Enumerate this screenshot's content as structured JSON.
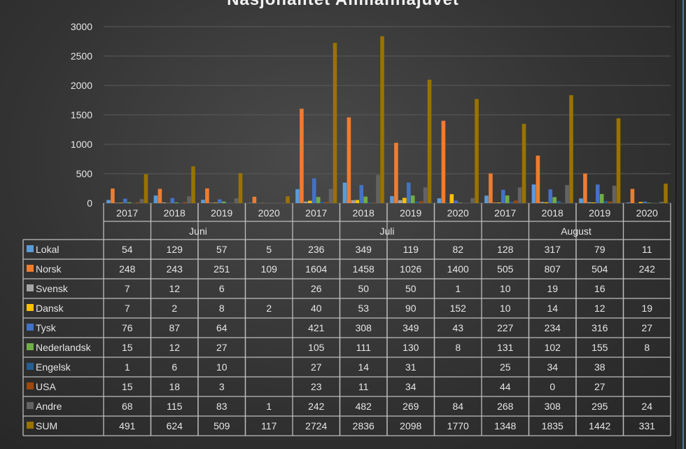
{
  "chart_data": {
    "type": "bar",
    "title": "Nasjonalitet Allmannajuvet",
    "ylim": [
      0,
      3000
    ],
    "yticks": [
      0,
      500,
      1000,
      1500,
      2000,
      2500,
      3000
    ],
    "grid": true,
    "legend": "data-table",
    "months": [
      "Juni",
      "Juli",
      "August"
    ],
    "years": [
      "2017",
      "2018",
      "2019",
      "2020"
    ],
    "categories": [
      "Juni 2017",
      "Juni 2018",
      "Juni 2019",
      "Juni 2020",
      "Juli 2017",
      "Juli 2018",
      "Juli 2019",
      "Juli 2020",
      "August 2017",
      "August 2018",
      "August 2019",
      "August 2020"
    ],
    "series": [
      {
        "name": "Lokal",
        "color": "#5B9BD5",
        "values": [
          54,
          129,
          57,
          5,
          236,
          349,
          119,
          82,
          128,
          317,
          79,
          11
        ]
      },
      {
        "name": "Norsk",
        "color": "#ED7D31",
        "values": [
          248,
          243,
          251,
          109,
          1604,
          1458,
          1026,
          1400,
          505,
          807,
          504,
          242
        ]
      },
      {
        "name": "Svensk",
        "color": "#A5A5A5",
        "values": [
          7,
          12,
          6,
          null,
          26,
          50,
          50,
          1,
          10,
          19,
          16,
          null
        ]
      },
      {
        "name": "Dansk",
        "color": "#FFC000",
        "values": [
          7,
          2,
          8,
          2,
          40,
          53,
          90,
          152,
          10,
          14,
          12,
          19
        ]
      },
      {
        "name": "Tysk",
        "color": "#4472C4",
        "values": [
          76,
          87,
          64,
          null,
          421,
          308,
          349,
          43,
          227,
          234,
          316,
          27
        ]
      },
      {
        "name": "Nederlandsk",
        "color": "#70AD47",
        "values": [
          15,
          12,
          27,
          null,
          105,
          111,
          130,
          8,
          131,
          102,
          155,
          8
        ]
      },
      {
        "name": "Engelsk",
        "color": "#255E91",
        "values": [
          1,
          6,
          10,
          null,
          27,
          14,
          31,
          null,
          25,
          34,
          38,
          null
        ]
      },
      {
        "name": "USA",
        "color": "#9E480E",
        "values": [
          15,
          18,
          3,
          null,
          23,
          11,
          34,
          null,
          44,
          0,
          27,
          null
        ]
      },
      {
        "name": "Andre",
        "color": "#636363",
        "values": [
          68,
          115,
          83,
          1,
          242,
          482,
          269,
          84,
          268,
          308,
          295,
          24
        ]
      },
      {
        "name": "SUM",
        "color": "#997300",
        "values": [
          491,
          624,
          509,
          117,
          2724,
          2836,
          2098,
          1770,
          1348,
          1835,
          1442,
          331
        ]
      }
    ]
  }
}
